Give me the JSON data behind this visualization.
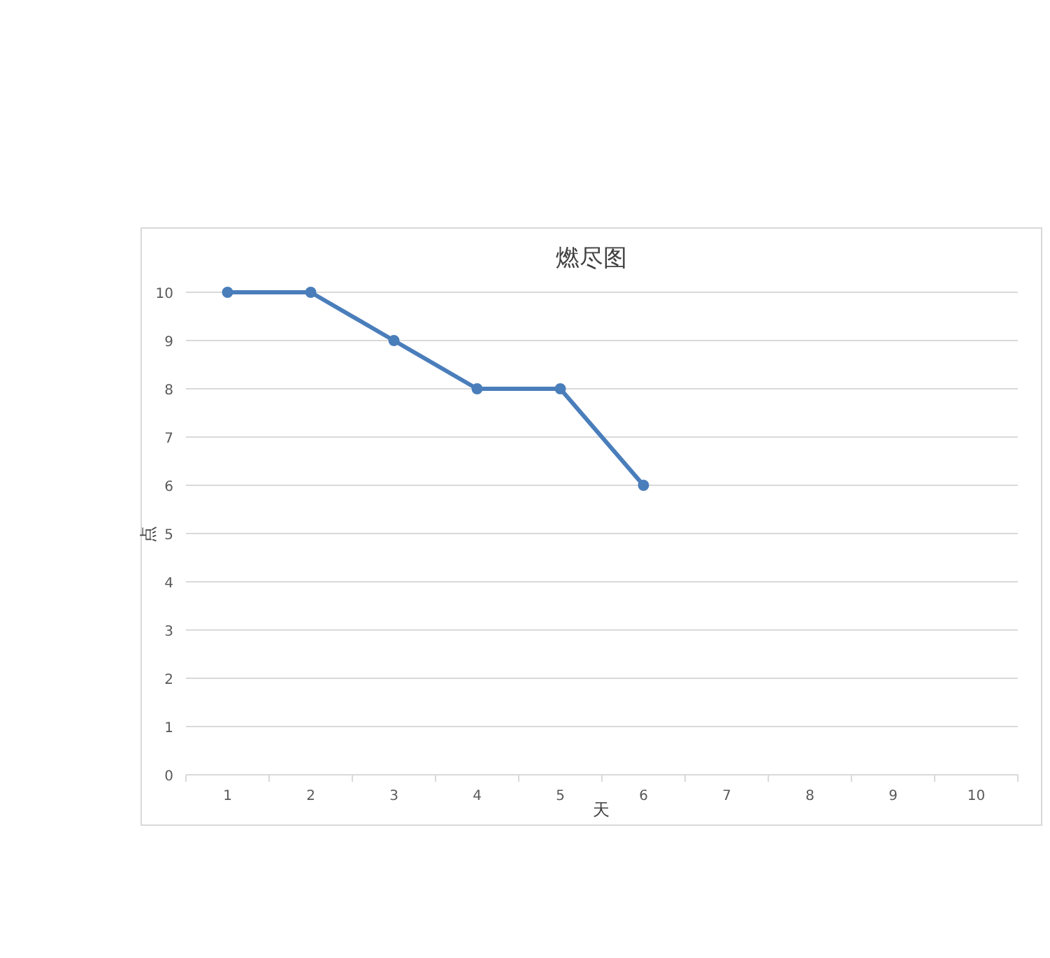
{
  "chart_data": {
    "type": "line",
    "title": "燃尽图",
    "xlabel": "天",
    "ylabel": "点",
    "categories": [
      "1",
      "2",
      "3",
      "4",
      "5",
      "6",
      "7",
      "8",
      "9",
      "10"
    ],
    "series": [
      {
        "color": "#4a7ebb",
        "values": [
          10,
          10,
          9,
          8,
          8,
          6,
          null,
          null,
          null,
          null
        ]
      }
    ],
    "ylim": [
      0,
      10
    ],
    "yticks": [
      0,
      1,
      2,
      3,
      4,
      5,
      6,
      7,
      8,
      9,
      10
    ],
    "grid": "y",
    "marker": "circle",
    "line_style": "solid"
  }
}
